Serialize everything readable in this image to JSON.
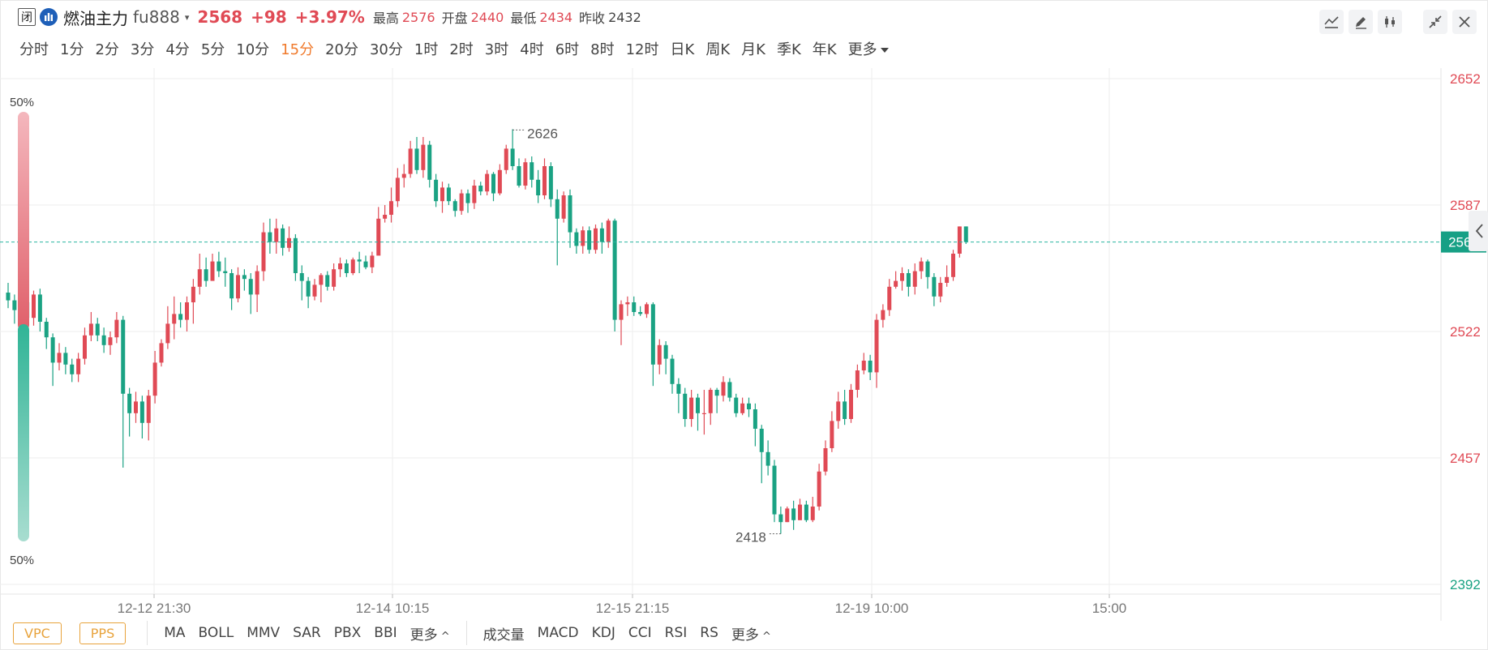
{
  "header": {
    "status": "闭",
    "name": "燃油主力",
    "code": "fu888",
    "caret": "▾",
    "price": "2568",
    "change": "+98",
    "change_pct": "+3.97%",
    "high_label": "最高",
    "high": "2576",
    "open_label": "开盘",
    "open": "2440",
    "low_label": "最低",
    "low": "2434",
    "prev_label": "昨收",
    "prev_close": "2432"
  },
  "periods": [
    "分时",
    "1分",
    "2分",
    "3分",
    "4分",
    "5分",
    "10分",
    "15分",
    "20分",
    "30分",
    "1时",
    "2时",
    "3时",
    "4时",
    "6时",
    "8时",
    "12时",
    "日K",
    "周K",
    "月K",
    "季K",
    "年K",
    "更多"
  ],
  "active_period": "15分",
  "toolbar": {
    "icons": [
      "line-tool-icon",
      "pencil-icon",
      "candle-style-icon",
      "collapse-icon",
      "close-icon"
    ]
  },
  "chart_data": {
    "type": "candlestick",
    "yaxis_ticks": [
      2652,
      2587,
      2522,
      2457,
      2392
    ],
    "xaxis_labels": [
      "12-12 21:30",
      "12-14 10:15",
      "12-15 21:15",
      "12-19 10:00",
      "15:00"
    ],
    "last_price": "2568",
    "high_marker": "2626",
    "low_marker": "2418",
    "pressure_top": "50%",
    "pressure_bottom": "50%",
    "colors": {
      "up": "#e04a55",
      "down": "#1aa283",
      "grid": "#eeeeee"
    },
    "candles": [
      [
        2542,
        2538,
        2547,
        2534
      ],
      [
        2538,
        2533,
        2541,
        2526
      ],
      [
        2533,
        2537,
        2546,
        2526
      ],
      [
        2537,
        2529,
        2544,
        2520
      ],
      [
        2529,
        2541,
        2543,
        2525
      ],
      [
        2541,
        2527,
        2544,
        2522
      ],
      [
        2527,
        2519,
        2529,
        2513
      ],
      [
        2519,
        2506,
        2521,
        2494
      ],
      [
        2506,
        2511,
        2516,
        2502
      ],
      [
        2511,
        2505,
        2514,
        2500
      ],
      [
        2505,
        2500,
        2508,
        2496
      ],
      [
        2500,
        2508,
        2511,
        2496
      ],
      [
        2508,
        2520,
        2524,
        2505
      ],
      [
        2520,
        2526,
        2532,
        2517
      ],
      [
        2526,
        2520,
        2529,
        2517
      ],
      [
        2520,
        2515,
        2524,
        2511
      ],
      [
        2515,
        2519,
        2522,
        2510
      ],
      [
        2519,
        2528,
        2532,
        2516
      ],
      [
        2528,
        2490,
        2530,
        2452
      ],
      [
        2490,
        2480,
        2493,
        2468
      ],
      [
        2480,
        2486,
        2491,
        2475
      ],
      [
        2486,
        2475,
        2489,
        2467
      ],
      [
        2475,
        2489,
        2492,
        2466
      ],
      [
        2489,
        2506,
        2512,
        2485
      ],
      [
        2506,
        2516,
        2518,
        2504
      ],
      [
        2516,
        2526,
        2535,
        2513
      ],
      [
        2526,
        2531,
        2540,
        2518
      ],
      [
        2531,
        2528,
        2537,
        2524
      ],
      [
        2528,
        2537,
        2540,
        2522
      ],
      [
        2537,
        2545,
        2549,
        2526
      ],
      [
        2545,
        2554,
        2562,
        2541
      ],
      [
        2554,
        2548,
        2560,
        2545
      ],
      [
        2548,
        2558,
        2562,
        2549
      ],
      [
        2558,
        2553,
        2563,
        2550
      ],
      [
        2553,
        2552,
        2560,
        2545
      ],
      [
        2552,
        2539,
        2554,
        2533
      ],
      [
        2539,
        2551,
        2555,
        2537
      ],
      [
        2551,
        2549,
        2554,
        2543
      ],
      [
        2549,
        2541,
        2552,
        2531
      ],
      [
        2541,
        2553,
        2556,
        2532
      ],
      [
        2553,
        2573,
        2578,
        2548
      ],
      [
        2573,
        2568,
        2580,
        2562
      ],
      [
        2568,
        2575,
        2580,
        2562
      ],
      [
        2575,
        2565,
        2577,
        2561
      ],
      [
        2565,
        2570,
        2576,
        2563
      ],
      [
        2570,
        2552,
        2572,
        2548
      ],
      [
        2552,
        2548,
        2556,
        2538
      ],
      [
        2548,
        2540,
        2550,
        2534
      ],
      [
        2540,
        2546,
        2549,
        2538
      ],
      [
        2546,
        2551,
        2552,
        2537
      ],
      [
        2551,
        2545,
        2553,
        2543
      ],
      [
        2545,
        2554,
        2557,
        2543
      ],
      [
        2554,
        2557,
        2560,
        2550
      ],
      [
        2557,
        2552,
        2559,
        2550
      ],
      [
        2552,
        2559,
        2560,
        2551
      ],
      [
        2559,
        2558,
        2563,
        2552
      ],
      [
        2558,
        2555,
        2561,
        2554
      ],
      [
        2555,
        2561,
        2563,
        2552
      ],
      [
        2561,
        2580,
        2586,
        2568
      ],
      [
        2580,
        2582,
        2587,
        2578
      ],
      [
        2582,
        2589,
        2596,
        2578
      ],
      [
        2589,
        2601,
        2606,
        2586
      ],
      [
        2601,
        2603,
        2608,
        2596
      ],
      [
        2603,
        2616,
        2620,
        2601
      ],
      [
        2616,
        2605,
        2622,
        2603
      ],
      [
        2605,
        2618,
        2622,
        2601
      ],
      [
        2618,
        2600,
        2620,
        2596
      ],
      [
        2600,
        2589,
        2603,
        2586
      ],
      [
        2589,
        2596,
        2599,
        2583
      ],
      [
        2596,
        2589,
        2598,
        2587
      ],
      [
        2589,
        2584,
        2590,
        2581
      ],
      [
        2584,
        2593,
        2595,
        2582
      ],
      [
        2593,
        2588,
        2595,
        2583
      ],
      [
        2588,
        2597,
        2600,
        2585
      ],
      [
        2597,
        2594,
        2599,
        2592
      ],
      [
        2594,
        2603,
        2605,
        2592
      ],
      [
        2603,
        2593,
        2604,
        2589
      ],
      [
        2593,
        2605,
        2608,
        2592
      ],
      [
        2605,
        2616,
        2618,
        2603
      ],
      [
        2616,
        2607,
        2626,
        2605
      ],
      [
        2607,
        2597,
        2611,
        2596
      ],
      [
        2597,
        2609,
        2611,
        2595
      ],
      [
        2609,
        2600,
        2612,
        2596
      ],
      [
        2600,
        2592,
        2605,
        2588
      ],
      [
        2592,
        2607,
        2611,
        2590
      ],
      [
        2607,
        2590,
        2609,
        2586
      ],
      [
        2590,
        2580,
        2595,
        2556
      ],
      [
        2580,
        2592,
        2594,
        2578
      ],
      [
        2592,
        2573,
        2595,
        2565
      ],
      [
        2573,
        2566,
        2575,
        2562
      ],
      [
        2566,
        2574,
        2576,
        2562
      ],
      [
        2574,
        2564,
        2576,
        2562
      ],
      [
        2564,
        2575,
        2577,
        2562
      ],
      [
        2575,
        2568,
        2578,
        2562
      ],
      [
        2568,
        2579,
        2580,
        2565
      ],
      [
        2579,
        2528,
        2580,
        2522
      ],
      [
        2528,
        2536,
        2538,
        2515
      ],
      [
        2536,
        2537,
        2540,
        2530
      ],
      [
        2537,
        2532,
        2540,
        2530
      ],
      [
        2532,
        2531,
        2535,
        2530
      ],
      [
        2531,
        2536,
        2537,
        2529
      ],
      [
        2536,
        2505,
        2537,
        2494
      ],
      [
        2505,
        2515,
        2518,
        2500
      ],
      [
        2515,
        2508,
        2517,
        2500
      ],
      [
        2508,
        2495,
        2510,
        2490
      ],
      [
        2495,
        2490,
        2498,
        2480
      ],
      [
        2490,
        2477,
        2493,
        2473
      ],
      [
        2477,
        2488,
        2492,
        2473
      ],
      [
        2488,
        2480,
        2490,
        2471
      ],
      [
        2480,
        2480,
        2492,
        2469
      ],
      [
        2480,
        2492,
        2493,
        2474
      ],
      [
        2492,
        2489,
        2493,
        2480
      ],
      [
        2489,
        2496,
        2499,
        2486
      ],
      [
        2496,
        2488,
        2498,
        2486
      ],
      [
        2488,
        2480,
        2490,
        2478
      ],
      [
        2480,
        2485,
        2488,
        2479
      ],
      [
        2485,
        2482,
        2488,
        2478
      ],
      [
        2482,
        2472,
        2485,
        2463
      ],
      [
        2472,
        2460,
        2474,
        2444
      ],
      [
        2460,
        2453,
        2466,
        2448
      ],
      [
        2453,
        2428,
        2456,
        2424
      ],
      [
        2428,
        2424,
        2432,
        2418
      ],
      [
        2424,
        2431,
        2432,
        2424
      ],
      [
        2431,
        2425,
        2435,
        2420
      ],
      [
        2425,
        2433,
        2436,
        2425
      ],
      [
        2433,
        2425,
        2435,
        2424
      ],
      [
        2425,
        2432,
        2437,
        2424
      ],
      [
        2432,
        2450,
        2454,
        2430
      ],
      [
        2450,
        2462,
        2466,
        2448
      ],
      [
        2462,
        2476,
        2481,
        2460
      ],
      [
        2476,
        2486,
        2491,
        2472
      ],
      [
        2486,
        2477,
        2492,
        2474
      ],
      [
        2477,
        2492,
        2495,
        2475
      ],
      [
        2492,
        2502,
        2505,
        2488
      ],
      [
        2502,
        2507,
        2511,
        2500
      ],
      [
        2507,
        2501,
        2510,
        2497
      ],
      [
        2501,
        2528,
        2531,
        2493
      ],
      [
        2528,
        2533,
        2536,
        2524
      ],
      [
        2533,
        2545,
        2549,
        2530
      ],
      [
        2545,
        2548,
        2553,
        2544
      ],
      [
        2548,
        2552,
        2555,
        2543
      ],
      [
        2552,
        2545,
        2554,
        2540
      ],
      [
        2545,
        2553,
        2557,
        2541
      ],
      [
        2553,
        2558,
        2560,
        2549
      ],
      [
        2558,
        2550,
        2559,
        2544
      ],
      [
        2550,
        2540,
        2552,
        2535
      ],
      [
        2540,
        2547,
        2550,
        2537
      ],
      [
        2547,
        2550,
        2556,
        2545
      ],
      [
        2550,
        2562,
        2564,
        2548
      ],
      [
        2562,
        2576,
        2576,
        2560
      ],
      [
        2576,
        2568,
        2576,
        2567
      ]
    ]
  },
  "bottom": {
    "pills": [
      "VPC",
      "PPS"
    ],
    "main_indicators": [
      "MA",
      "BOLL",
      "MMV",
      "SAR",
      "PBX",
      "BBI"
    ],
    "main_more": "更多",
    "sub_indicators": [
      "成交量",
      "MACD",
      "KDJ",
      "CCI",
      "RSI",
      "RS"
    ],
    "sub_more": "更多"
  }
}
